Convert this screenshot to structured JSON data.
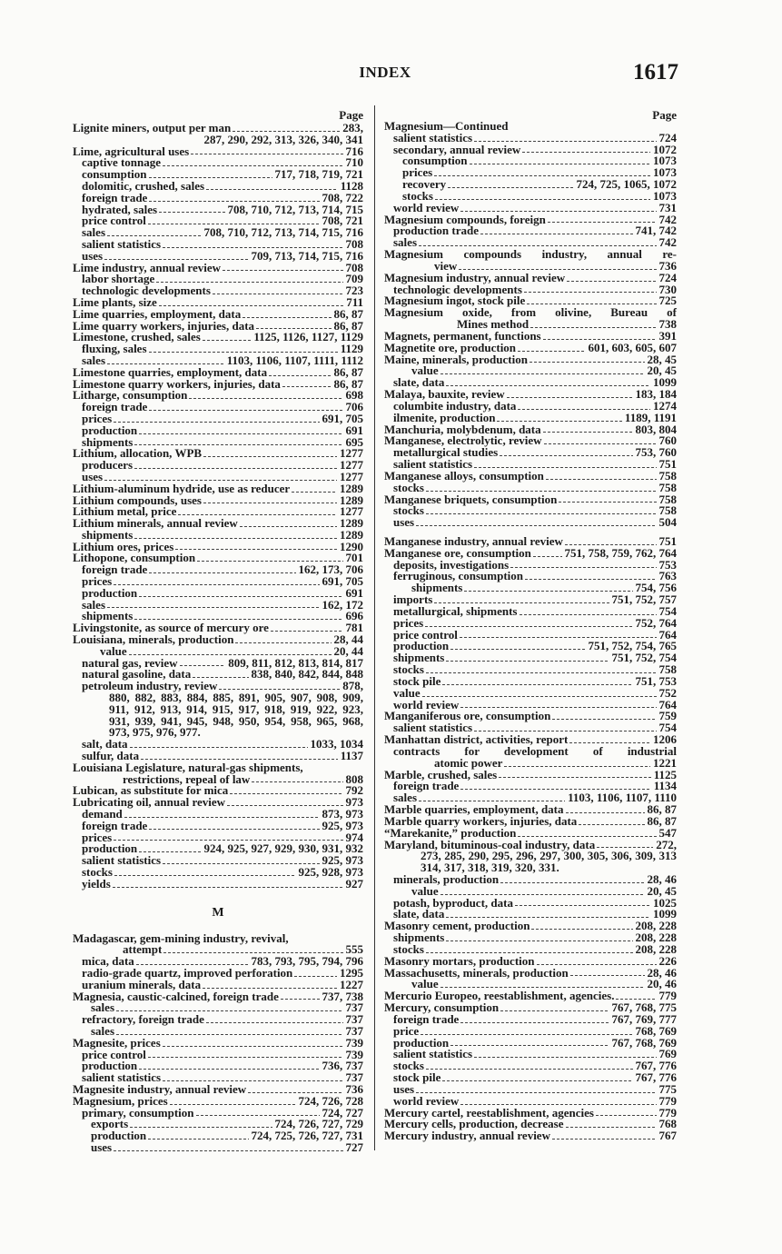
{
  "header": {
    "title": "INDEX",
    "page_number": "1617",
    "page_label": "Page"
  },
  "left_column": {
    "rows_before": [
      {
        "t": "Lignite miners, output per man",
        "p": "283,",
        "i": 0
      },
      {
        "c": "287, 290, 292, 313, 326, 340, 341"
      },
      {
        "t": "Lime, agricultural uses",
        "p": "716",
        "i": 0
      },
      {
        "t": "captive tonnage",
        "p": "710",
        "i": 1
      },
      {
        "t": "consumption",
        "p": "717, 718, 719, 721",
        "i": 1
      },
      {
        "t": "dolomitic, crushed, sales",
        "p": "1128",
        "i": 1
      },
      {
        "t": "foreign trade",
        "p": "708, 722",
        "i": 1
      },
      {
        "t": "hydrated, sales",
        "p": "708, 710, 712, 713, 714, 715",
        "i": 1
      },
      {
        "t": "price control",
        "p": "708, 721",
        "i": 1
      },
      {
        "t": "sales",
        "p": "708, 710, 712, 713, 714, 715, 716",
        "i": 1
      },
      {
        "t": "salient statistics",
        "p": "708",
        "i": 1
      },
      {
        "t": "uses",
        "p": "709, 713, 714, 715, 716",
        "i": 1
      },
      {
        "t": "Lime industry, annual review",
        "p": "708",
        "i": 0
      },
      {
        "t": "labor shortage",
        "p": "709",
        "i": 1
      },
      {
        "t": "technologic developments",
        "p": "723",
        "i": 1
      },
      {
        "t": "Lime plants, size",
        "p": "711",
        "i": 0
      },
      {
        "t": "Lime quarries, employment, data",
        "p": "86, 87",
        "i": 0
      },
      {
        "t": "Lime quarry workers, injuries, data",
        "p": "86, 87",
        "i": 0
      },
      {
        "t": "Limestone, crushed, sales",
        "p": "1125, 1126, 1127, 1129",
        "i": 0
      },
      {
        "t": "fluxing, sales",
        "p": "1129",
        "i": 1
      },
      {
        "t": "sales",
        "p": "1103, 1106, 1107, 1111, 1112",
        "i": 1
      },
      {
        "t": "Limestone quarries, employment, data",
        "p": "86, 87",
        "i": 0
      },
      {
        "t": "Limestone quarry workers, injuries, data",
        "p": "86, 87",
        "i": 0
      },
      {
        "t": "Litharge, consumption",
        "p": "698",
        "i": 0
      },
      {
        "t": "foreign trade",
        "p": "706",
        "i": 1
      },
      {
        "t": "prices",
        "p": "691, 705",
        "i": 1
      },
      {
        "t": "production",
        "p": "691",
        "i": 1
      },
      {
        "t": "shipments",
        "p": "695",
        "i": 1
      },
      {
        "t": "Lithium, allocation, WPB",
        "p": "1277",
        "i": 0
      },
      {
        "t": "producers",
        "p": "1277",
        "i": 1
      },
      {
        "t": "uses",
        "p": "1277",
        "i": 1
      },
      {
        "t": "Lithium-aluminum hydride, use as reducer",
        "p": "1289",
        "i": 0
      },
      {
        "t": "Lithium compounds, uses",
        "p": "1289",
        "i": 0
      },
      {
        "t": "Lithium metal, price",
        "p": "1277",
        "i": 0
      },
      {
        "t": "Lithium minerals, annual review",
        "p": "1289",
        "i": 0
      },
      {
        "t": "shipments",
        "p": "1289",
        "i": 1
      },
      {
        "t": "Lithium ores, prices",
        "p": "1290",
        "i": 0
      },
      {
        "t": "Lithopone, consumption",
        "p": "701",
        "i": 0
      },
      {
        "t": "foreign trade",
        "p": "162, 173, 706",
        "i": 1
      },
      {
        "t": "prices",
        "p": "691, 705",
        "i": 1
      },
      {
        "t": "production",
        "p": "691",
        "i": 1
      },
      {
        "t": "sales",
        "p": "162, 172",
        "i": 1
      },
      {
        "t": "shipments",
        "p": "696",
        "i": 1
      },
      {
        "t": "Livingstonite, as source of mercury ore",
        "p": "781",
        "i": 0
      },
      {
        "t": "Louisiana, minerals, production",
        "p": "28, 44",
        "i": 0
      },
      {
        "t": "value",
        "p": "20, 44",
        "i": 3
      },
      {
        "t": "natural gas, review",
        "p": "809, 811, 812, 813, 814, 817",
        "i": 1
      },
      {
        "t": "natural gasoline, data",
        "p": "838, 840, 842, 844, 848",
        "i": 1
      },
      {
        "t": "petroleum industry, review",
        "p": "878,",
        "i": 1
      },
      {
        "j": "880, 882, 883, 884, 885, 891, 905, 907, 908, 909,",
        "i": 4
      },
      {
        "j": "911, 912, 913, 914, 915, 917, 918, 919, 922, 923,",
        "i": 4
      },
      {
        "j": "931, 939, 941, 945, 948, 950, 954, 958, 965, 968,",
        "i": 4
      },
      {
        "n": "973, 975, 976, 977.",
        "i": 4
      },
      {
        "t": "salt, data",
        "p": "1033, 1034",
        "i": 1
      },
      {
        "t": "sulfur, data",
        "p": "1137",
        "i": 1
      },
      {
        "n": "Louisiana Legislature, natural-gas shipments,",
        "i": 0
      },
      {
        "t": "restrictions, repeal of law",
        "p": "808",
        "i": 5
      },
      {
        "t": "Lubican, as substitute for mica",
        "p": "792",
        "i": 0
      },
      {
        "t": "Lubricating oil, annual review",
        "p": "973",
        "i": 0
      },
      {
        "t": "demand",
        "p": "873, 973",
        "i": 1
      },
      {
        "t": "foreign trade",
        "p": "925, 973",
        "i": 1
      },
      {
        "t": "prices",
        "p": "974",
        "i": 1
      },
      {
        "t": "production",
        "p": "924, 925, 927, 929, 930, 931, 932",
        "i": 1
      },
      {
        "t": "salient statistics",
        "p": "925, 973",
        "i": 1
      },
      {
        "t": "stocks",
        "p": "925, 928, 973",
        "i": 1
      },
      {
        "t": "yields",
        "p": "927",
        "i": 1
      }
    ],
    "section_heading": "M",
    "rows_after": [
      {
        "n": "Madagascar, gem-mining industry, revival,",
        "i": 0
      },
      {
        "t": "attempt",
        "p": "555",
        "i": 5
      },
      {
        "t": "mica, data",
        "p": "783, 793, 795, 794, 796",
        "i": 1
      },
      {
        "t": "radio-grade quartz, improved perforation",
        "p": "1295",
        "i": 1
      },
      {
        "t": "uranium minerals, data",
        "p": "1227",
        "i": 1
      },
      {
        "t": "Magnesia, caustic-calcined, foreign trade",
        "p": "737, 738",
        "i": 0
      },
      {
        "t": "sales",
        "p": "737",
        "i": 2
      },
      {
        "t": "refractory, foreign trade",
        "p": "737",
        "i": 1
      },
      {
        "t": "sales",
        "p": "737",
        "i": 2
      },
      {
        "t": "Magnesite, prices",
        "p": "739",
        "i": 0
      },
      {
        "t": "price control",
        "p": "739",
        "i": 1
      },
      {
        "t": "production",
        "p": "736, 737",
        "i": 1
      },
      {
        "t": "salient statistics",
        "p": "737",
        "i": 1
      },
      {
        "t": "Magnesite industry, annual review",
        "p": "736",
        "i": 0
      },
      {
        "t": "Magnesium, prices",
        "p": "724, 726, 728",
        "i": 0
      },
      {
        "t": "primary, consumption",
        "p": "724, 727",
        "i": 1
      },
      {
        "t": "exports",
        "p": "724, 726, 727, 729",
        "i": 2
      },
      {
        "t": "production",
        "p": "724, 725, 726, 727, 731",
        "i": 2
      },
      {
        "t": "uses",
        "p": "727",
        "i": 2
      }
    ]
  },
  "right_column": {
    "rows": [
      {
        "n": "Magnesium—Continued",
        "i": 0
      },
      {
        "t": "salient statistics",
        "p": "724",
        "i": 1
      },
      {
        "t": "secondary, annual review",
        "p": "1072",
        "i": 1
      },
      {
        "t": "consumption",
        "p": "1073",
        "i": 2
      },
      {
        "t": "prices",
        "p": "1073",
        "i": 2
      },
      {
        "t": "recovery",
        "p": "724, 725, 1065, 1072",
        "i": 2
      },
      {
        "t": "stocks",
        "p": "1073",
        "i": 2
      },
      {
        "t": "world review",
        "p": "731",
        "i": 1
      },
      {
        "t": "Magnesium compounds, foreign",
        "p": "742",
        "i": 0
      },
      {
        "t": "production trade",
        "p": "741, 742",
        "i": 1
      },
      {
        "t": "sales",
        "p": "742",
        "i": 1
      },
      {
        "j": "Magnesium compounds industry, annual re-",
        "i": 0
      },
      {
        "t": "view",
        "p": "736",
        "i": 5
      },
      {
        "t": "Magnesium industry, annual review",
        "p": "724",
        "i": 0
      },
      {
        "t": "technologic developments",
        "p": "730",
        "i": 1
      },
      {
        "t": "Magnesium ingot, stock pile",
        "p": "725",
        "i": 0
      },
      {
        "j": "Magnesium oxide, from olivine, Bureau of",
        "i": 0
      },
      {
        "t": "Mines method",
        "p": "738",
        "i": 6
      },
      {
        "t": "Magnets, permanent, functions",
        "p": "391",
        "i": 0
      },
      {
        "t": "Magnetite ore, production",
        "p": "601, 603, 605, 607",
        "i": 0
      },
      {
        "t": "Maine, minerals, production",
        "p": "28, 45",
        "i": 0
      },
      {
        "t": "value",
        "p": "20, 45",
        "i": 3
      },
      {
        "t": "slate, data",
        "p": "1099",
        "i": 1
      },
      {
        "t": "Malaya, bauxite, review",
        "p": "183, 184",
        "i": 0
      },
      {
        "t": "columbite industry, data",
        "p": "1274",
        "i": 1
      },
      {
        "t": "ilmenite, production",
        "p": "1189, 1191",
        "i": 1
      },
      {
        "t": "Manchuria, molybdenum, data",
        "p": "803, 804",
        "i": 0
      },
      {
        "t": "Manganese, electrolytic, review",
        "p": "760",
        "i": 0
      },
      {
        "t": "metallurgical studies",
        "p": "753, 760",
        "i": 1
      },
      {
        "t": "salient statistics",
        "p": "751",
        "i": 1
      },
      {
        "t": "Manganese alloys, consumption",
        "p": "758",
        "i": 0
      },
      {
        "t": "stocks",
        "p": "758",
        "i": 1
      },
      {
        "t": "Manganese briquets, consumption",
        "p": "758",
        "i": 0
      },
      {
        "t": "stocks",
        "p": "758",
        "i": 1
      },
      {
        "t": "uses",
        "p": "504",
        "i": 1
      },
      {
        "t": "Manganese industry, annual review",
        "p": "751",
        "i": 0,
        "gap": true
      },
      {
        "t": "Manganese ore, consumption",
        "p": "751, 758, 759, 762, 764",
        "i": 0
      },
      {
        "t": "deposits, investigations",
        "p": "753",
        "i": 1
      },
      {
        "t": "ferruginous, consumption",
        "p": "763",
        "i": 1
      },
      {
        "t": "shipments",
        "p": "754, 756",
        "i": 3
      },
      {
        "t": "imports",
        "p": "751, 752, 757",
        "i": 1
      },
      {
        "t": "metallurgical, shipments",
        "p": "754",
        "i": 1
      },
      {
        "t": "prices",
        "p": "752, 764",
        "i": 1
      },
      {
        "t": "price control",
        "p": "764",
        "i": 1
      },
      {
        "t": "production",
        "p": "751, 752, 754, 765",
        "i": 1
      },
      {
        "t": "shipments",
        "p": "751, 752, 754",
        "i": 1
      },
      {
        "t": "stocks",
        "p": "758",
        "i": 1
      },
      {
        "t": "stock pile",
        "p": "751, 753",
        "i": 1
      },
      {
        "t": "value",
        "p": "752",
        "i": 1
      },
      {
        "t": "world review",
        "p": "764",
        "i": 1
      },
      {
        "t": "Manganiferous ore, consumption",
        "p": "759",
        "i": 0
      },
      {
        "t": "salient statistics",
        "p": "754",
        "i": 1
      },
      {
        "t": "Manhattan district, activities, report",
        "p": "1206",
        "i": 0
      },
      {
        "j": "contracts for development of industrial",
        "i": 1
      },
      {
        "t": "atomic power",
        "p": "1221",
        "i": 5
      },
      {
        "t": "Marble, crushed, sales",
        "p": "1125",
        "i": 0
      },
      {
        "t": "foreign trade",
        "p": "1134",
        "i": 1
      },
      {
        "t": "sales",
        "p": "1103, 1106, 1107, 1110",
        "i": 1
      },
      {
        "t": "Marble quarries, employment, data",
        "p": "86, 87",
        "i": 0
      },
      {
        "t": "Marble quarry workers, injuries, data",
        "p": "86, 87",
        "i": 0
      },
      {
        "t": "“Marekanite,” production",
        "p": "547",
        "i": 0
      },
      {
        "t": "Maryland, bituminous-coal industry, data",
        "p": "272,",
        "i": 0
      },
      {
        "j": "273, 285, 290, 295, 296, 297, 300, 305, 306, 309, 313",
        "i": 4
      },
      {
        "n": "314, 317, 318, 319, 320, 331.",
        "i": 4
      },
      {
        "t": "minerals, production",
        "p": "28, 46",
        "i": 1
      },
      {
        "t": "value",
        "p": "20, 45",
        "i": 3
      },
      {
        "t": "potash, byproduct, data",
        "p": "1025",
        "i": 1
      },
      {
        "t": "slate, data",
        "p": "1099",
        "i": 1
      },
      {
        "t": "Masonry cement, production",
        "p": "208, 228",
        "i": 0
      },
      {
        "t": "shipments",
        "p": "208, 228",
        "i": 1
      },
      {
        "t": "stocks",
        "p": "208, 228",
        "i": 1
      },
      {
        "t": "Masonry mortars, production",
        "p": "226",
        "i": 0
      },
      {
        "t": "Massachusetts, minerals, production",
        "p": "28, 46",
        "i": 0
      },
      {
        "t": "value",
        "p": "20, 46",
        "i": 3
      },
      {
        "t": "Mercurio Europeo, reestablishment, agencies.",
        "p": "779",
        "i": 0
      },
      {
        "t": "Mercury, consumption",
        "p": "767, 768, 775",
        "i": 0
      },
      {
        "t": "foreign trade",
        "p": "767, 769, 777",
        "i": 1
      },
      {
        "t": "price",
        "p": "768, 769",
        "i": 1
      },
      {
        "t": "production",
        "p": "767, 768, 769",
        "i": 1
      },
      {
        "t": "salient statistics",
        "p": "769",
        "i": 1
      },
      {
        "t": "stocks",
        "p": "767, 776",
        "i": 1
      },
      {
        "t": "stock pile",
        "p": "767, 776",
        "i": 1
      },
      {
        "t": "uses",
        "p": "775",
        "i": 1
      },
      {
        "t": "world review",
        "p": "779",
        "i": 1
      },
      {
        "t": "Mercury cartel, reestablishment, agencies",
        "p": "779",
        "i": 0
      },
      {
        "t": "Mercury cells, production, decrease",
        "p": "768",
        "i": 0
      },
      {
        "t": "Mercury industry, annual review",
        "p": "767",
        "i": 0
      }
    ]
  }
}
